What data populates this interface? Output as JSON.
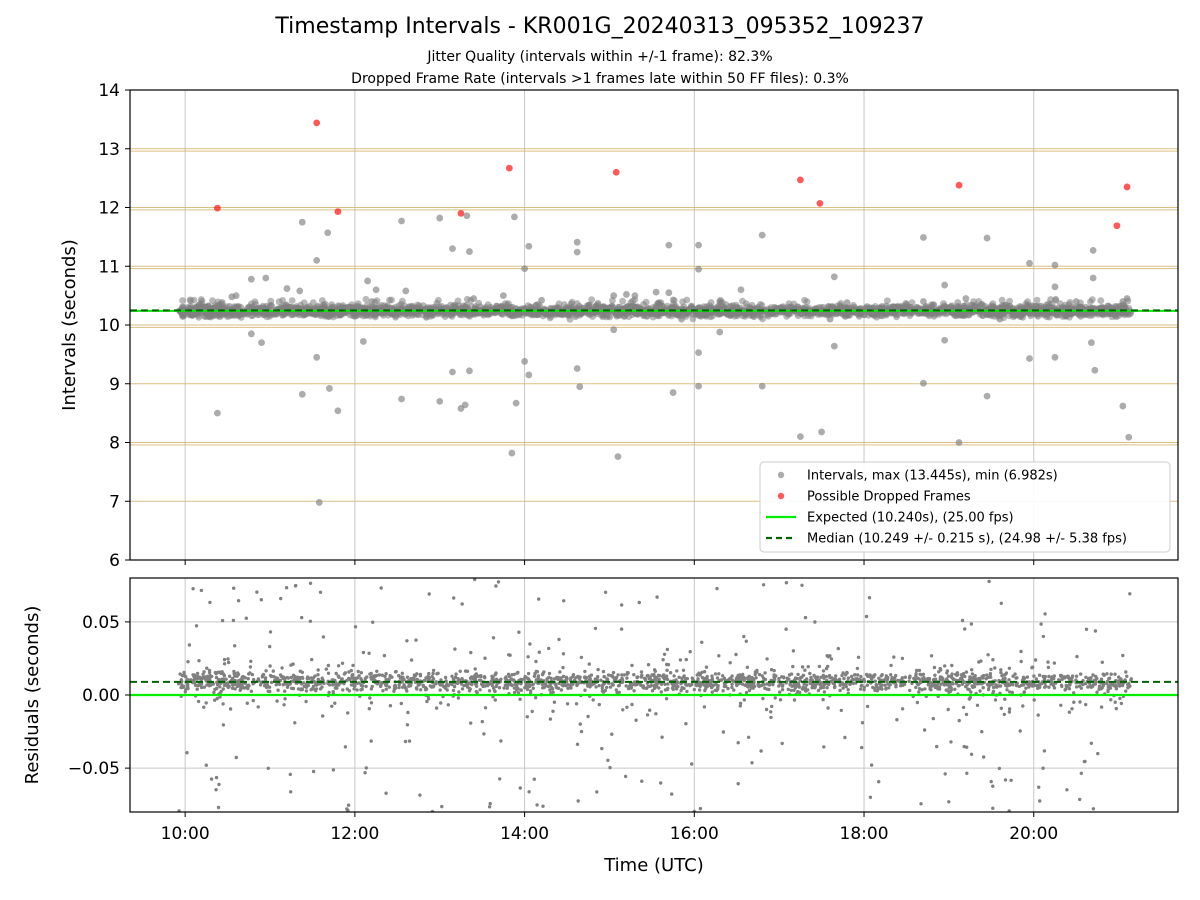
{
  "figure": {
    "title": "Timestamp Intervals - KR001G_20240313_095352_109237",
    "subtitle_1": "Jitter Quality (intervals within +/-1 frame): 82.3%",
    "subtitle_2": "Dropped Frame Rate (intervals >1 frames late within 50 FF files): 0.3%"
  },
  "colors": {
    "intervals": "#808080",
    "dropped": "#ff0000",
    "expected": "#00ee00",
    "median": "#006400",
    "frame_lines": "#d4b46a",
    "grid": "#c8c8c8"
  },
  "chart_data": [
    {
      "type": "scatter",
      "panel": "top",
      "ylabel": "Intervals (seconds)",
      "xlabel": "",
      "xlim": [
        9.35,
        21.7
      ],
      "ylim": [
        6,
        14
      ],
      "yticks": [
        6,
        7,
        8,
        9,
        10,
        11,
        12,
        13,
        14
      ],
      "ytick_labels": [
        "6",
        "7",
        "8",
        "9",
        "10",
        "11",
        "12",
        "13",
        "14"
      ],
      "xticks": [
        10,
        12,
        14,
        16,
        18,
        20
      ],
      "grid": "vertical",
      "frame_lines": [
        7.0,
        7.96,
        8.0,
        9.0,
        9.96,
        10.0,
        10.96,
        11.0,
        11.96,
        12.0,
        12.96,
        13.0
      ],
      "legend_position": "lower-right",
      "legend": [
        "Intervals, max (13.445s), min (6.982s)",
        "Possible Dropped Frames",
        "Expected (10.240s), (25.00 fps)",
        "Median (10.249 +/- 0.215 s), (24.98 +/- 5.38 fps)"
      ],
      "expected": 10.24,
      "median": 10.249,
      "series": [
        {
          "name": "Intervals, max (13.445s), min (6.982s)",
          "points": [
            [
              10.38,
              8.5
            ],
            [
              11.38,
              11.75
            ],
            [
              11.38,
              8.82
            ],
            [
              11.55,
              11.1
            ],
            [
              11.55,
              9.45
            ],
            [
              11.58,
              6.98
            ],
            [
              11.68,
              11.57
            ],
            [
              11.7,
              8.92
            ],
            [
              11.8,
              8.54
            ],
            [
              12.55,
              11.77
            ],
            [
              12.55,
              8.74
            ],
            [
              13.0,
              11.82
            ],
            [
              13.0,
              8.7
            ],
            [
              13.15,
              11.3
            ],
            [
              13.15,
              9.2
            ],
            [
              13.32,
              11.86
            ],
            [
              13.25,
              8.58
            ],
            [
              13.35,
              11.25
            ],
            [
              13.35,
              9.22
            ],
            [
              13.3,
              8.64
            ],
            [
              13.88,
              11.84
            ],
            [
              13.85,
              7.82
            ],
            [
              13.9,
              8.67
            ],
            [
              14.05,
              11.34
            ],
            [
              14.05,
              9.15
            ],
            [
              14.0,
              9.38
            ],
            [
              14.0,
              10.96
            ],
            [
              14.62,
              11.41
            ],
            [
              14.62,
              11.24
            ],
            [
              14.62,
              9.26
            ],
            [
              14.65,
              8.95
            ],
            [
              15.1,
              7.76
            ],
            [
              15.7,
              11.36
            ],
            [
              15.75,
              8.85
            ],
            [
              16.05,
              11.36
            ],
            [
              16.05,
              8.96
            ],
            [
              16.05,
              9.53
            ],
            [
              16.8,
              11.53
            ],
            [
              16.8,
              8.96
            ],
            [
              17.25,
              8.1
            ],
            [
              17.5,
              8.18
            ],
            [
              17.65,
              10.82
            ],
            [
              17.65,
              9.64
            ],
            [
              18.7,
              11.49
            ],
            [
              18.7,
              9.01
            ],
            [
              18.95,
              9.74
            ],
            [
              19.12,
              8.0
            ],
            [
              19.45,
              11.48
            ],
            [
              19.45,
              8.79
            ],
            [
              19.95,
              11.05
            ],
            [
              19.95,
              9.43
            ],
            [
              20.25,
              11.02
            ],
            [
              20.25,
              9.45
            ],
            [
              20.7,
              11.27
            ],
            [
              20.72,
              9.23
            ],
            [
              20.7,
              10.8
            ],
            [
              20.68,
              9.7
            ],
            [
              21.05,
              8.62
            ],
            [
              21.12,
              8.09
            ],
            [
              20.25,
              10.65
            ],
            [
              16.05,
              10.95
            ],
            [
              15.7,
              10.55
            ],
            [
              12.6,
              10.58
            ],
            [
              11.35,
              10.58
            ],
            [
              10.95,
              10.8
            ],
            [
              10.78,
              10.78
            ],
            [
              12.15,
              10.75
            ],
            [
              12.25,
              10.6
            ],
            [
              12.1,
              9.72
            ],
            [
              12.2,
              10.4
            ],
            [
              10.78,
              9.85
            ],
            [
              10.9,
              9.7
            ],
            [
              15.55,
              10.56
            ],
            [
              15.2,
              10.52
            ],
            [
              15.3,
              10.5
            ],
            [
              16.55,
              10.6
            ],
            [
              18.7,
              10.4
            ],
            [
              18.95,
              10.68
            ],
            [
              19.2,
              10.45
            ],
            [
              10.55,
              10.48
            ],
            [
              10.6,
              10.5
            ],
            [
              11.2,
              10.62
            ],
            [
              13.75,
              10.5
            ],
            [
              14.2,
              10.42
            ],
            [
              14.55,
              10.36
            ],
            [
              15.05,
              9.92
            ],
            [
              15.05,
              10.5
            ],
            [
              16.3,
              10.4
            ],
            [
              16.3,
              9.88
            ],
            [
              17.8,
              10.38
            ],
            [
              17.6,
              10.1
            ],
            [
              20.5,
              10.4
            ],
            [
              20.55,
              10.3
            ],
            [
              21.05,
              10.4
            ],
            [
              21.1,
              10.45
            ],
            [
              13.4,
              10.45
            ],
            [
              12.0,
              10.2
            ],
            [
              12.0,
              10.15
            ],
            [
              12.85,
              10.25
            ],
            [
              13.6,
              10.3
            ],
            [
              14.25,
              10.22
            ],
            [
              15.85,
              10.1
            ],
            [
              16.75,
              10.3
            ],
            [
              17.1,
              10.25
            ],
            [
              18.35,
              10.3
            ],
            [
              18.5,
              10.35
            ],
            [
              19.6,
              10.1
            ],
            [
              19.85,
              10.3
            ],
            [
              20.05,
              10.15
            ],
            [
              20.9,
              10.3
            ]
          ]
        },
        {
          "name": "Possible Dropped Frames",
          "points": [
            [
              10.38,
              11.99
            ],
            [
              11.55,
              13.44
            ],
            [
              11.8,
              11.93
            ],
            [
              13.25,
              11.9
            ],
            [
              13.82,
              12.67
            ],
            [
              15.08,
              12.6
            ],
            [
              17.25,
              12.47
            ],
            [
              17.48,
              12.07
            ],
            [
              19.12,
              12.38
            ],
            [
              20.98,
              11.69
            ],
            [
              21.1,
              12.35
            ]
          ]
        }
      ],
      "dense_bands": [
        {
          "x_start": 9.92,
          "x_end": 21.15,
          "y_center": 10.24,
          "y_spread": 0.14
        }
      ]
    },
    {
      "type": "scatter",
      "panel": "bottom",
      "ylabel": "Residuals (seconds)",
      "xlabel": "Time (UTC)",
      "xlim": [
        9.35,
        21.7
      ],
      "ylim": [
        -0.08,
        0.08
      ],
      "yticks": [
        -0.05,
        0.0,
        0.05
      ],
      "ytick_labels": [
        "−0.05",
        "0.00",
        "0.05"
      ],
      "xticks": [
        10,
        12,
        14,
        16,
        18,
        20
      ],
      "xtick_labels": [
        "10:00",
        "12:00",
        "14:00",
        "16:00",
        "18:00",
        "20:00"
      ],
      "grid": "both",
      "expected_residual": 0.0,
      "median_residual": 0.009,
      "series": [
        {
          "name": "Residuals",
          "x_range": [
            9.92,
            21.15
          ],
          "y_center": 0.009,
          "y_spread": 0.014,
          "outlier_range": [
            -0.08,
            0.08
          ]
        }
      ]
    }
  ]
}
